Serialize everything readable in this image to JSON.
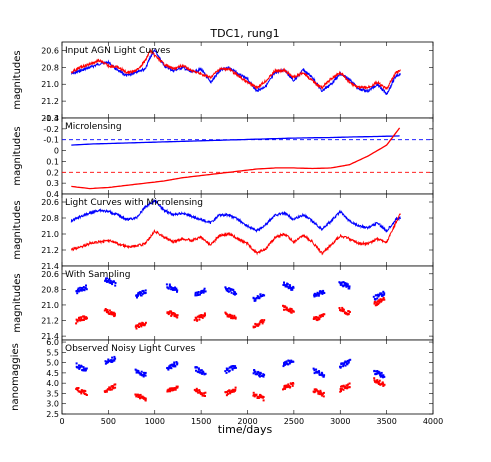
{
  "figure": {
    "title": "TDC1, rung1",
    "xlabel": "time/days",
    "x_ticks": [
      "0",
      "500",
      "1000",
      "1500",
      "2000",
      "2500",
      "3000",
      "3500",
      "4000"
    ],
    "xlim": [
      0,
      4000
    ]
  },
  "colors": {
    "series_a": "#0000ff",
    "series_b": "#ff0000"
  },
  "chart_data": [
    {
      "type": "line",
      "title": "Input AGN Light Curves",
      "ylabel": "magnitudes",
      "ylim": [
        21.4,
        20.5
      ],
      "yticks": [
        "20.6",
        "20.8",
        "21.0",
        "21.2",
        "21.4"
      ],
      "x": [
        100,
        200,
        300,
        400,
        500,
        600,
        700,
        800,
        900,
        950,
        1000,
        1100,
        1200,
        1300,
        1400,
        1500,
        1600,
        1700,
        1800,
        1900,
        2000,
        2100,
        2200,
        2300,
        2400,
        2500,
        2600,
        2700,
        2800,
        2900,
        3000,
        3100,
        3200,
        3300,
        3400,
        3500,
        3600,
        3650
      ],
      "series": [
        {
          "values": [
            20.88,
            20.84,
            20.8,
            20.76,
            20.74,
            20.84,
            20.9,
            20.85,
            20.82,
            20.68,
            20.6,
            20.78,
            20.84,
            20.8,
            20.86,
            20.82,
            20.98,
            20.84,
            20.8,
            20.88,
            20.94,
            21.08,
            21.02,
            20.86,
            20.83,
            20.96,
            20.83,
            20.92,
            21.08,
            21.0,
            20.88,
            20.94,
            21.06,
            21.08,
            21.0,
            21.12,
            20.9,
            20.88
          ]
        },
        {
          "values": [
            20.86,
            20.8,
            20.76,
            20.72,
            20.78,
            20.8,
            20.86,
            20.84,
            20.72,
            20.6,
            20.66,
            20.76,
            20.82,
            20.78,
            20.84,
            20.88,
            20.92,
            20.82,
            20.82,
            20.9,
            20.98,
            21.04,
            20.96,
            20.84,
            20.84,
            20.92,
            20.86,
            20.96,
            21.04,
            20.94,
            20.86,
            20.98,
            21.04,
            21.04,
            20.98,
            21.06,
            20.86,
            20.84
          ]
        }
      ]
    },
    {
      "type": "line",
      "title": "Microlensing",
      "ylabel": "magnitudes",
      "ylim": [
        0.4,
        -0.3
      ],
      "yticks": [
        "-0.3",
        "-0.2",
        "-0.1",
        "0",
        "0.1",
        "0.2",
        "0.3",
        "0.4"
      ],
      "reference_lines": [
        -0.1,
        0.2
      ],
      "x": [
        100,
        300,
        500,
        700,
        900,
        1100,
        1300,
        1500,
        1700,
        1900,
        2100,
        2300,
        2500,
        2700,
        2900,
        3100,
        3300,
        3500,
        3650
      ],
      "series": [
        {
          "values": [
            -0.05,
            -0.06,
            -0.065,
            -0.07,
            -0.075,
            -0.08,
            -0.085,
            -0.09,
            -0.095,
            -0.1,
            -0.105,
            -0.11,
            -0.115,
            -0.118,
            -0.12,
            -0.125,
            -0.128,
            -0.132,
            -0.135
          ]
        },
        {
          "values": [
            0.33,
            0.35,
            0.34,
            0.32,
            0.3,
            0.28,
            0.25,
            0.23,
            0.21,
            0.19,
            0.17,
            0.16,
            0.16,
            0.165,
            0.16,
            0.13,
            0.05,
            -0.05,
            -0.22
          ]
        }
      ]
    },
    {
      "type": "line",
      "title": "Light Curves with Microlensing",
      "ylabel": "magnitudes",
      "ylim": [
        21.4,
        20.5
      ],
      "yticks": [
        "20.6",
        "20.8",
        "21.0",
        "21.2",
        "21.4"
      ],
      "x": [
        100,
        200,
        300,
        400,
        500,
        600,
        700,
        800,
        900,
        1000,
        1100,
        1200,
        1300,
        1400,
        1500,
        1600,
        1700,
        1800,
        1900,
        2000,
        2100,
        2200,
        2300,
        2400,
        2500,
        2600,
        2700,
        2800,
        2900,
        3000,
        3100,
        3200,
        3300,
        3400,
        3500,
        3600,
        3650
      ],
      "series": [
        {
          "values": [
            20.84,
            20.78,
            20.74,
            20.7,
            20.72,
            20.76,
            20.82,
            20.8,
            20.66,
            20.58,
            20.7,
            20.76,
            20.74,
            20.78,
            20.82,
            20.86,
            20.76,
            20.76,
            20.82,
            20.9,
            20.96,
            20.88,
            20.76,
            20.74,
            20.82,
            20.76,
            20.84,
            20.94,
            20.84,
            20.72,
            20.84,
            20.9,
            20.92,
            20.86,
            20.96,
            20.82,
            20.8
          ]
        },
        {
          "values": [
            21.2,
            21.16,
            21.12,
            21.1,
            21.08,
            21.12,
            21.16,
            21.15,
            21.12,
            20.96,
            21.04,
            21.1,
            21.06,
            21.08,
            21.04,
            21.14,
            21.02,
            21.0,
            21.06,
            21.12,
            21.24,
            21.18,
            21.04,
            21.0,
            21.1,
            21.02,
            21.1,
            21.24,
            21.14,
            21.02,
            21.06,
            21.12,
            21.12,
            21.06,
            21.1,
            20.86,
            20.74
          ]
        }
      ]
    },
    {
      "type": "scatter",
      "title": "With Sampling",
      "ylabel": "magnitudes",
      "ylim": [
        21.45,
        20.5
      ],
      "yticks": [
        "20.6",
        "20.8",
        "21.0",
        "21.2",
        "21.4"
      ],
      "seasons": [
        210,
        520,
        850,
        1190,
        1490,
        1820,
        2120,
        2440,
        2770,
        3050,
        3420
      ],
      "series": [
        {
          "values": [
            20.8,
            20.7,
            20.86,
            20.78,
            20.84,
            20.82,
            20.9,
            20.76,
            20.86,
            20.74,
            20.88
          ]
        },
        {
          "values": [
            21.18,
            21.1,
            21.26,
            21.12,
            21.16,
            21.14,
            21.24,
            21.06,
            21.16,
            21.08,
            20.96
          ]
        }
      ]
    },
    {
      "type": "scatter",
      "title": "Observed Noisy Light Curves",
      "ylabel": "nanomaggies",
      "ylim": [
        2.5,
        6.1
      ],
      "yticks": [
        "2.5",
        "3.0",
        "3.5",
        "4.0",
        "4.5",
        "5.0",
        "5.5",
        "6.0"
      ],
      "seasons": [
        210,
        520,
        850,
        1190,
        1490,
        1820,
        2120,
        2440,
        2770,
        3050,
        3420
      ],
      "series": [
        {
          "values": [
            4.75,
            5.1,
            4.5,
            4.85,
            4.6,
            4.7,
            4.45,
            5.0,
            4.5,
            4.95,
            4.45
          ]
        },
        {
          "values": [
            3.6,
            3.75,
            3.35,
            3.7,
            3.55,
            3.6,
            3.35,
            3.85,
            3.55,
            3.8,
            4.05
          ]
        }
      ]
    }
  ]
}
